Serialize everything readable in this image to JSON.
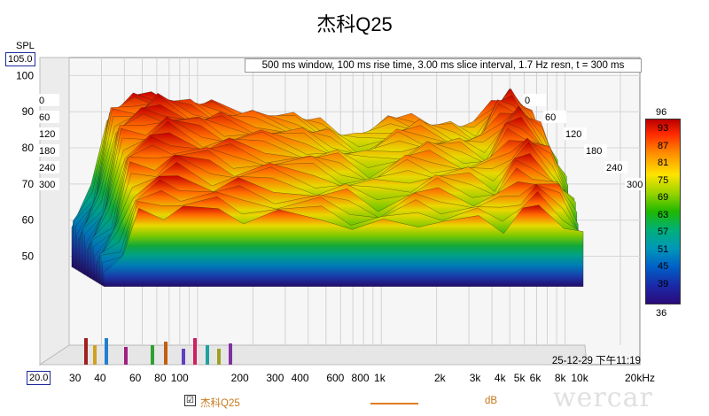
{
  "title": "杰科Q25",
  "info": "500 ms window, 100 ms rise time, 3.00 ms slice interval, 1.7 Hz resn, t = 300 ms",
  "timestamp": "25-12-29 下午11:19",
  "legend": {
    "checkbox": "☑",
    "name": "杰科Q25",
    "unit": "dB"
  },
  "watermark": "wercar",
  "colorbar": {
    "top": "96",
    "bottom": "36",
    "ticks": [
      "93",
      "87",
      "81",
      "75",
      "69",
      "63",
      "57",
      "51",
      "45",
      "39"
    ]
  },
  "chart_data": {
    "type": "area",
    "title": "杰科Q25",
    "ylabel": "SPL",
    "ylim": [
      20,
      105
    ],
    "y_min_label": "20.0",
    "y_max_label": "105.0",
    "y_ticks": [
      "100",
      "90",
      "80",
      "70",
      "60",
      "50"
    ],
    "x_ticks": [
      "30",
      "40",
      "60",
      "80",
      "100",
      "200",
      "300",
      "400",
      "600",
      "800",
      "1k",
      "2k",
      "3k",
      "4k",
      "5k",
      "6k",
      "8k",
      "10k",
      "20kHz"
    ],
    "x_scale": "log",
    "xlim": [
      20,
      20000
    ],
    "time_axis_left": [
      "0",
      "60",
      "120",
      "180",
      "240",
      "300"
    ],
    "time_axis_right": [
      "0",
      "60",
      "120",
      "180",
      "240",
      "300"
    ],
    "x": [
      40,
      50,
      60,
      80,
      100,
      150,
      200,
      300,
      500,
      700,
      1000,
      1500,
      2000,
      3000,
      4000,
      5000,
      6000,
      8000,
      10000
    ],
    "series": [
      {
        "values": [
          58,
          68,
          90,
          93,
          95,
          92,
          91,
          90,
          88,
          86,
          83,
          87,
          88,
          86,
          85,
          93,
          95,
          88,
          76
        ]
      }
    ]
  }
}
